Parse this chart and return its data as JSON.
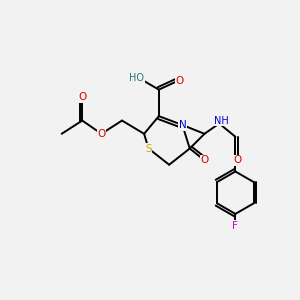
{
  "background_color": "#f2f2f2",
  "atom_colors": {
    "C": "#000000",
    "N": "#0000cc",
    "O": "#dd0000",
    "S": "#ccaa00",
    "F": "#cc00cc",
    "H": "#227777"
  },
  "figsize": [
    3.0,
    3.0
  ],
  "dpi": 100,
  "bond_lw": 1.4,
  "label_fontsize": 7.5
}
